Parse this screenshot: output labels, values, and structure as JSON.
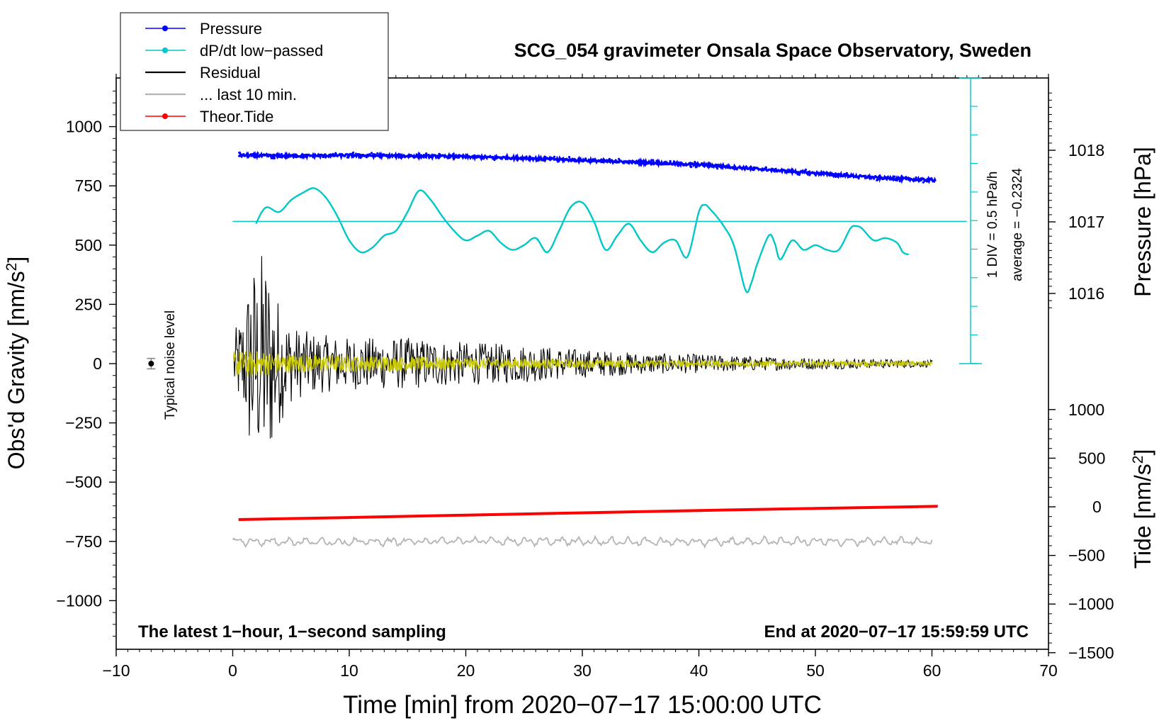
{
  "chart_data": {
    "type": "line",
    "title": "SCG_054 gravimeter Onsala Space Observatory, Sweden",
    "xlabel": "Time [min] from 2020−07−17 15:00:00 UTC",
    "xlim": [
      -10,
      70
    ],
    "x_ticks": [
      -10,
      0,
      10,
      20,
      30,
      40,
      50,
      60,
      70
    ],
    "x_tick_labels": [
      "−10",
      "0",
      "10",
      "20",
      "30",
      "40",
      "50",
      "60",
      "70"
    ],
    "left_axis": {
      "label_main": "Obs'd Gravity [nm/s",
      "label_sup": "2",
      "label_end": "]",
      "ylim": [
        -1200,
        1200
      ],
      "ticks": [
        -1000,
        -750,
        -500,
        -250,
        0,
        250,
        500,
        750,
        1000
      ],
      "tick_labels": [
        "−1000",
        "−750",
        "−500",
        "−250",
        "0",
        "250",
        "500",
        "750",
        "1000"
      ]
    },
    "pressure_axis": {
      "label": "Pressure [hPa]",
      "ticks": [
        1016,
        1017,
        1018
      ],
      "tick_labels": [
        "1016",
        "1017",
        "1018"
      ]
    },
    "tide_axis": {
      "label_main": "Tide [nm/s",
      "label_sup": "2",
      "label_end": "]",
      "ticks": [
        -1500,
        -1000,
        -500,
        0,
        500,
        1000
      ],
      "tick_labels": [
        "−1500",
        "−1000",
        "−500",
        "0",
        "500",
        "1000"
      ]
    },
    "dpdt_scale": {
      "line1": "1 DIV = 0.5 hPa/h",
      "line2": "average = −0.2324"
    },
    "noise": {
      "label": "Typical noise level",
      "x": -7,
      "y": 0,
      "err": 22
    },
    "legend": {
      "position": "top-left",
      "entries": [
        {
          "label": "Pressure",
          "color": "#0000ff",
          "marker": true
        },
        {
          "label": "dP/dt low−passed",
          "color": "#00c8c8",
          "marker": true
        },
        {
          "label": "Residual",
          "color": "#000000",
          "marker": false
        },
        {
          "label": "... last 10 min.",
          "color": "#b4b4b4",
          "marker": false
        },
        {
          "label": "Theor.Tide",
          "color": "#ff0000",
          "marker": true
        }
      ]
    },
    "annotations": {
      "bottom_left": "The latest 1−hour, 1−second sampling",
      "bottom_right": "End at 2020−07−17 15:59:59 UTC"
    },
    "series": [
      {
        "name": "Pressure",
        "units": "hPa",
        "color": "#0000ff",
        "x": [
          0.5,
          5,
          10,
          15,
          20,
          25,
          30,
          35,
          40,
          45,
          50,
          55,
          60.3
        ],
        "values": [
          1017.93,
          1017.92,
          1017.93,
          1017.92,
          1017.91,
          1017.89,
          1017.86,
          1017.83,
          1017.8,
          1017.74,
          1017.68,
          1017.62,
          1017.58
        ]
      },
      {
        "name": "dP/dt low-passed",
        "units": "gravity-axis position (nm/s^2)",
        "color": "#00c8c8",
        "baseline": 600,
        "baseline_x": [
          0,
          63
        ],
        "x": [
          2,
          2.5,
          3,
          4,
          5,
          6,
          7,
          8,
          9,
          10,
          11,
          12,
          13,
          14,
          15,
          16,
          17,
          18,
          19,
          20,
          21,
          22,
          23,
          24,
          25,
          26,
          27,
          28,
          29,
          30,
          31,
          32,
          33,
          34,
          35,
          36,
          37,
          38,
          39,
          40,
          40.5,
          41,
          42,
          43,
          44,
          44.5,
          45,
          46,
          46.5,
          47,
          48,
          49,
          50,
          51,
          52,
          53,
          53.5,
          54,
          55,
          56,
          57,
          57.5,
          58
        ],
        "values": [
          590,
          640,
          660,
          640,
          690,
          720,
          740,
          700,
          620,
          520,
          470,
          490,
          540,
          560,
          640,
          730,
          690,
          620,
          560,
          520,
          540,
          560,
          510,
          480,
          500,
          530,
          470,
          560,
          660,
          680,
          600,
          480,
          540,
          590,
          520,
          470,
          510,
          520,
          450,
          640,
          670,
          650,
          590,
          500,
          310,
          340,
          420,
          540,
          510,
          440,
          520,
          480,
          500,
          480,
          480,
          570,
          580,
          570,
          520,
          530,
          510,
          470,
          460
        ]
      },
      {
        "name": "Residual",
        "units": "nm/s^2",
        "color": "#000000",
        "x": [
          0,
          1,
          1.5,
          2,
          2.5,
          3,
          4,
          5,
          6,
          8,
          10,
          12,
          15,
          20,
          25,
          30,
          35,
          40,
          45,
          50,
          55,
          60
        ],
        "envelope": [
          130,
          250,
          460,
          400,
          500,
          430,
          250,
          160,
          140,
          120,
          110,
          110,
          110,
          90,
          80,
          60,
          45,
          40,
          30,
          25,
          20,
          15
        ]
      },
      {
        "name": "... last 10 min.",
        "units": "nm/s^2",
        "color": "#b4b4b4",
        "x": [
          0,
          10,
          20,
          30,
          40,
          50,
          60
        ],
        "values": [
          -750,
          -752,
          -748,
          -750,
          -752,
          -749,
          -750
        ]
      },
      {
        "name": "Theor.Tide",
        "units": "nm/s^2",
        "color": "#ff0000",
        "x": [
          0.5,
          10,
          20,
          30,
          40,
          50,
          60.5
        ],
        "values": [
          -131,
          -110,
          -85,
          -62,
          -38,
          -17,
          5
        ]
      },
      {
        "name": "Short-period residual",
        "units": "nm/s^2",
        "color": "#c8c800",
        "x": [
          0,
          2,
          5,
          10,
          20,
          30,
          40,
          50,
          60
        ],
        "envelope": [
          55,
          55,
          40,
          35,
          25,
          18,
          14,
          12,
          10
        ]
      }
    ]
  }
}
